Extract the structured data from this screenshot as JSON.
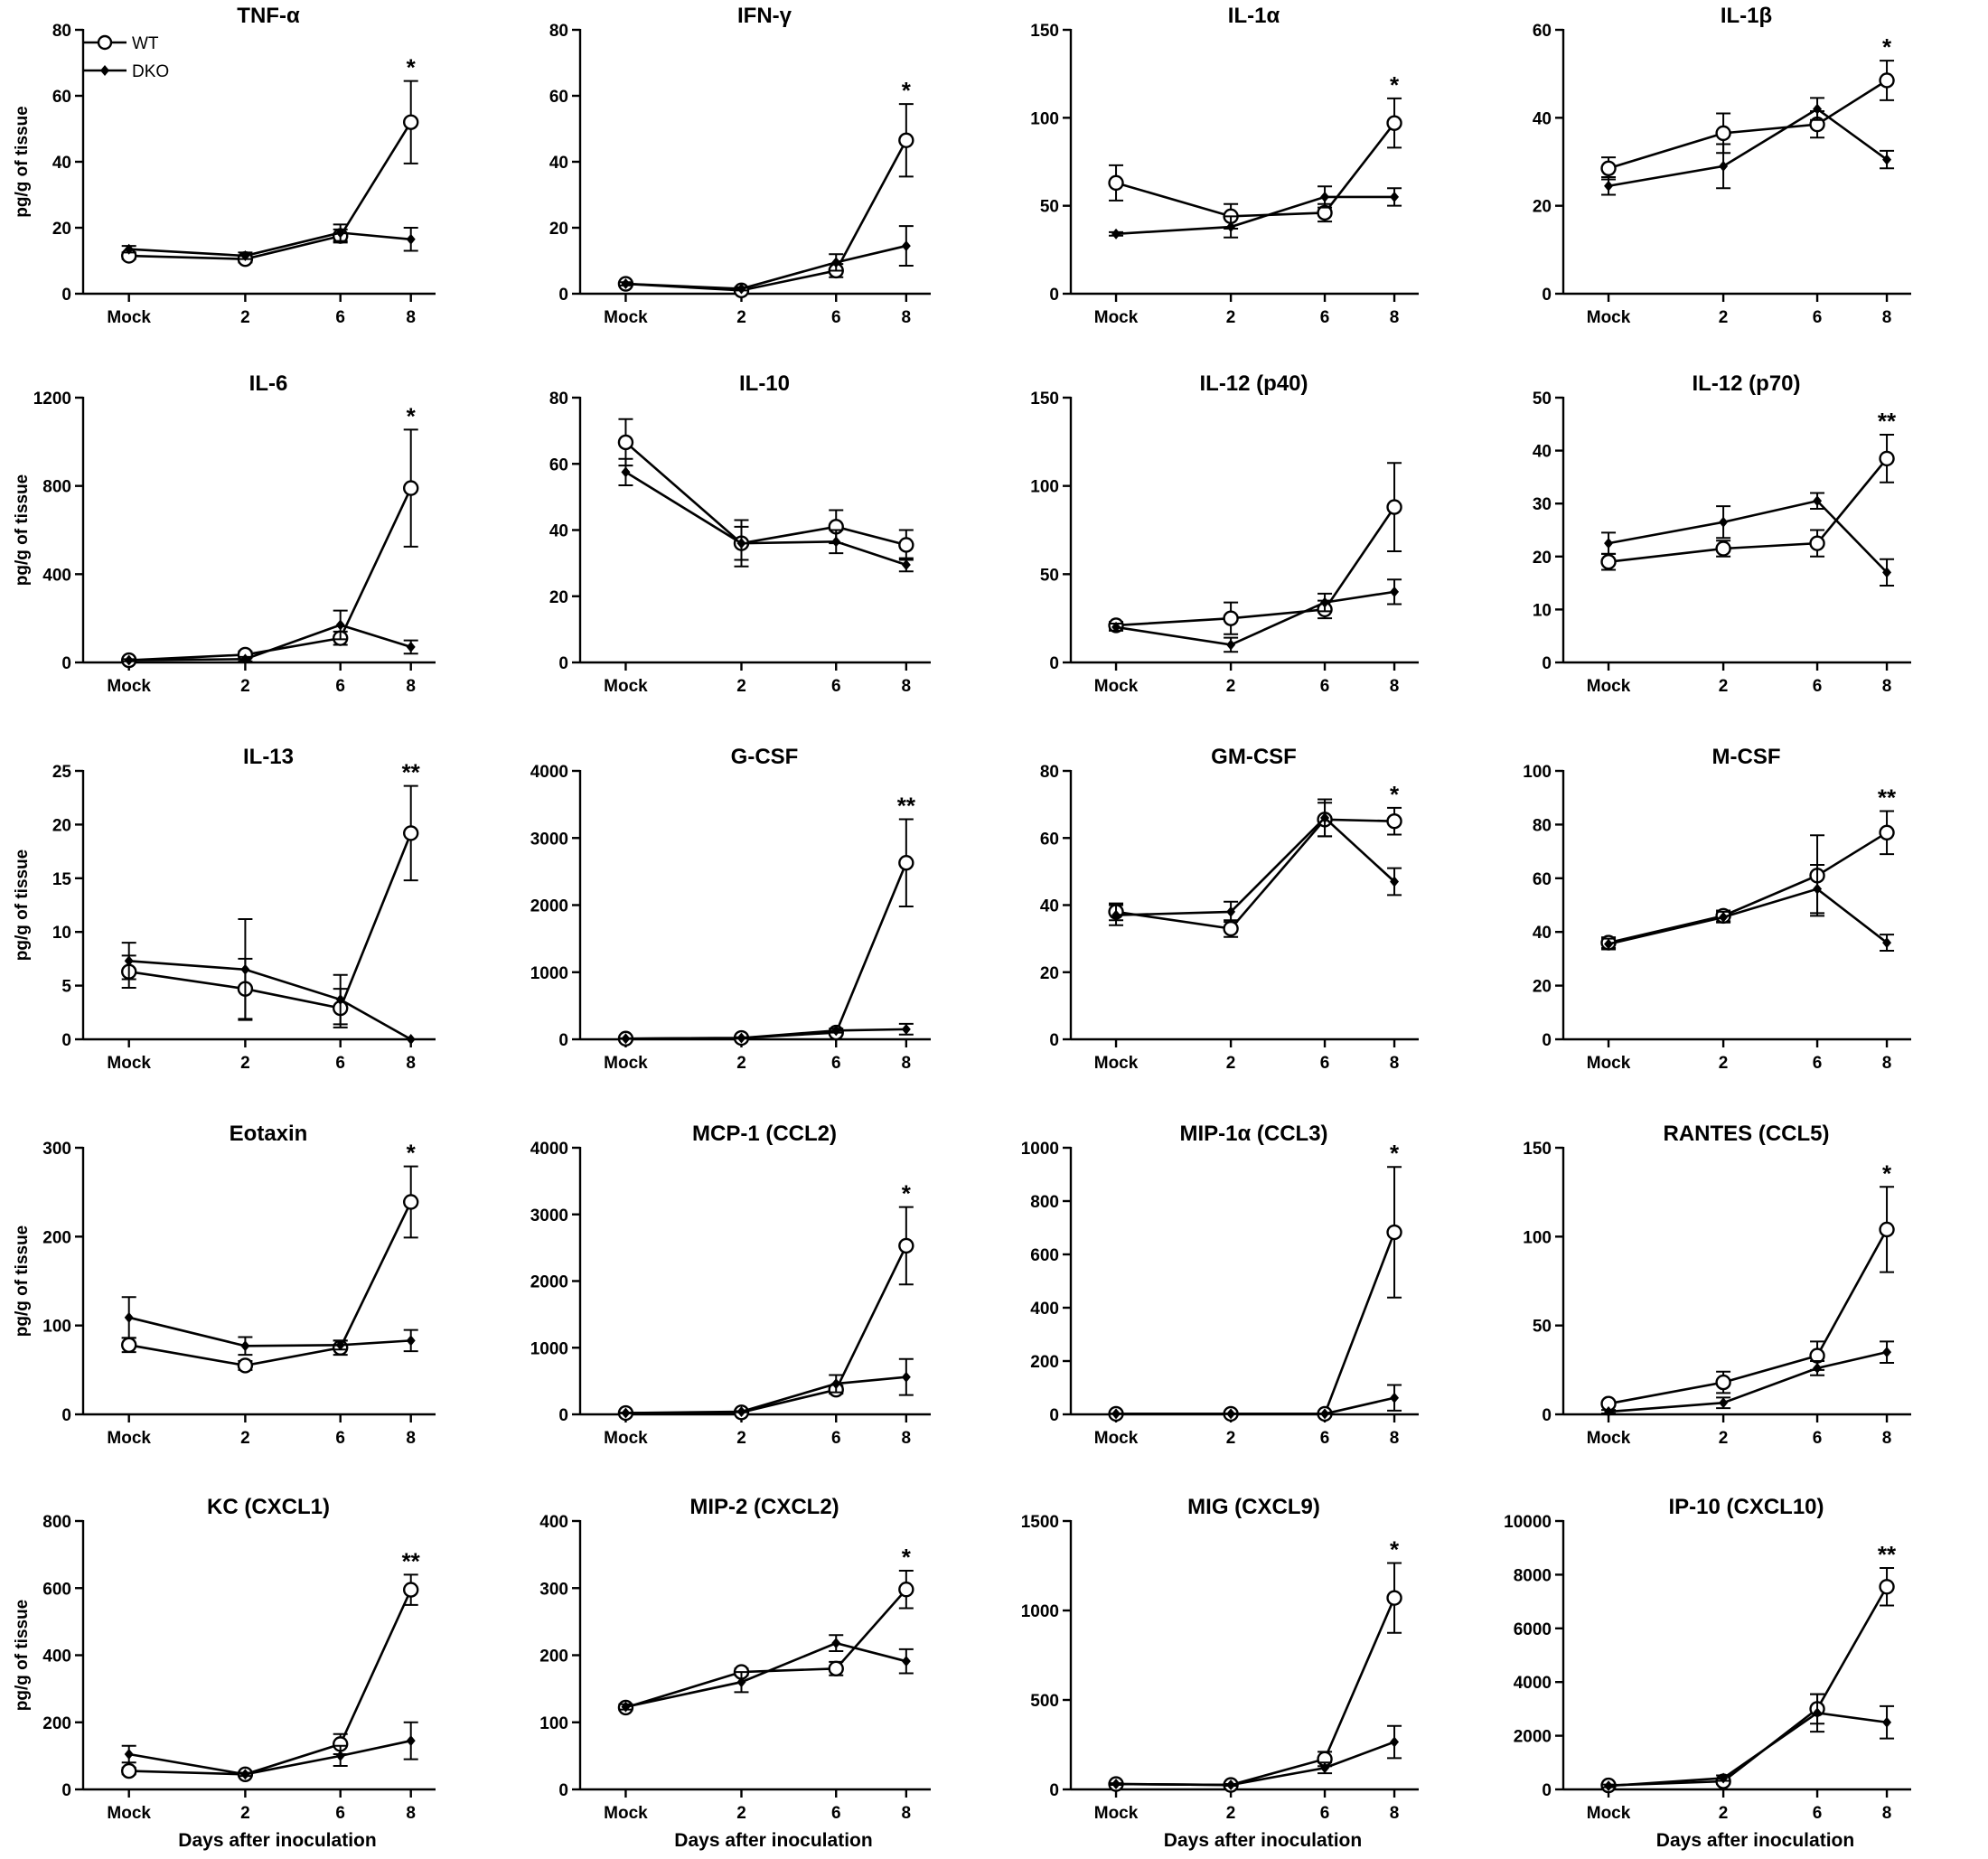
{
  "figure": {
    "legend": {
      "wt_label": "WT",
      "dko_label": "DKO",
      "placement": "top-left"
    },
    "ylabel": "pg/g of tissue",
    "xlabel": "Days after inoculation",
    "x_categories": [
      "Mock",
      "2",
      "6",
      "8"
    ]
  },
  "chart_data": [
    {
      "type": "line",
      "title": "TNF-α",
      "ylim": [
        0,
        80
      ],
      "yticks": [
        0,
        20,
        40,
        60,
        80
      ],
      "categories": [
        "Mock",
        "2",
        "6",
        "8"
      ],
      "series": [
        {
          "name": "WT",
          "values": [
            11.5,
            10.5,
            17.5,
            52
          ],
          "errors": [
            1,
            1,
            2,
            12.5
          ]
        },
        {
          "name": "DKO",
          "values": [
            13.5,
            11.5,
            18.5,
            16.5
          ],
          "errors": [
            1,
            1,
            2.5,
            3.5
          ]
        }
      ],
      "significance": [
        {
          "category": "8",
          "text": "*"
        }
      ],
      "ylabel": "pg/g of tissue",
      "xlabel": ""
    },
    {
      "type": "line",
      "title": "IFN-γ",
      "ylim": [
        0,
        80
      ],
      "yticks": [
        0,
        20,
        40,
        60,
        80
      ],
      "categories": [
        "Mock",
        "2",
        "6",
        "8"
      ],
      "series": [
        {
          "name": "WT",
          "values": [
            3,
            1,
            7,
            46.5
          ],
          "errors": [
            0.5,
            0.5,
            2,
            11
          ]
        },
        {
          "name": "DKO",
          "values": [
            3,
            1.5,
            9.5,
            14.5
          ],
          "errors": [
            0.5,
            0.5,
            2.5,
            6
          ]
        }
      ],
      "significance": [
        {
          "category": "8",
          "text": "*"
        }
      ],
      "ylabel": "",
      "xlabel": ""
    },
    {
      "type": "line",
      "title": "IL-1α",
      "ylim": [
        0,
        150
      ],
      "yticks": [
        0,
        50,
        100,
        150
      ],
      "categories": [
        "Mock",
        "2",
        "6",
        "8"
      ],
      "series": [
        {
          "name": "WT",
          "values": [
            63,
            44,
            46,
            97
          ],
          "errors": [
            10,
            7,
            5,
            14
          ]
        },
        {
          "name": "DKO",
          "values": [
            34,
            38,
            55,
            55
          ],
          "errors": [
            1,
            6,
            6,
            5
          ]
        }
      ],
      "significance": [
        {
          "category": "8",
          "text": "*"
        }
      ],
      "ylabel": "",
      "xlabel": ""
    },
    {
      "type": "line",
      "title": "IL-1β",
      "ylim": [
        0,
        60
      ],
      "yticks": [
        0,
        20,
        40,
        60
      ],
      "categories": [
        "Mock",
        "2",
        "6",
        "8"
      ],
      "series": [
        {
          "name": "WT",
          "values": [
            28.5,
            36.5,
            38.5,
            48.5
          ],
          "errors": [
            2.5,
            4.5,
            3,
            4.5
          ]
        },
        {
          "name": "DKO",
          "values": [
            24.5,
            29,
            42,
            30.5
          ],
          "errors": [
            2,
            5,
            2.5,
            2
          ]
        }
      ],
      "significance": [
        {
          "category": "8",
          "text": "*"
        }
      ],
      "ylabel": "",
      "xlabel": ""
    },
    {
      "type": "line",
      "title": "IL-6",
      "ylim": [
        0,
        1200
      ],
      "yticks": [
        0,
        400,
        800,
        1200
      ],
      "categories": [
        "Mock",
        "2",
        "6",
        "8"
      ],
      "series": [
        {
          "name": "WT",
          "values": [
            10,
            35,
            110,
            790
          ],
          "errors": [
            5,
            15,
            30,
            265
          ]
        },
        {
          "name": "DKO",
          "values": [
            10,
            15,
            170,
            70
          ],
          "errors": [
            5,
            10,
            65,
            30
          ]
        }
      ],
      "significance": [
        {
          "category": "8",
          "text": "*"
        }
      ],
      "ylabel": "pg/g of tissue",
      "xlabel": ""
    },
    {
      "type": "line",
      "title": "IL-10",
      "ylim": [
        0,
        80
      ],
      "yticks": [
        0,
        20,
        40,
        60,
        80
      ],
      "categories": [
        "Mock",
        "2",
        "6",
        "8"
      ],
      "series": [
        {
          "name": "WT",
          "values": [
            66.5,
            36,
            41,
            35.5
          ],
          "errors": [
            7,
            7,
            5,
            4.5
          ]
        },
        {
          "name": "DKO",
          "values": [
            57.5,
            36,
            36.5,
            29.5
          ],
          "errors": [
            4,
            5,
            3.5,
            2
          ]
        }
      ],
      "significance": [],
      "ylabel": "",
      "xlabel": ""
    },
    {
      "type": "line",
      "title": "IL-12 (p40)",
      "ylim": [
        0,
        150
      ],
      "yticks": [
        0,
        50,
        100,
        150
      ],
      "categories": [
        "Mock",
        "2",
        "6",
        "8"
      ],
      "series": [
        {
          "name": "WT",
          "values": [
            21,
            25,
            30,
            88
          ],
          "errors": [
            2,
            9,
            5,
            25
          ]
        },
        {
          "name": "DKO",
          "values": [
            20,
            10,
            34,
            40
          ],
          "errors": [
            2,
            4,
            5,
            7
          ]
        }
      ],
      "significance": [],
      "ylabel": "",
      "xlabel": ""
    },
    {
      "type": "line",
      "title": "IL-12 (p70)",
      "ylim": [
        0,
        50
      ],
      "yticks": [
        0,
        10,
        20,
        30,
        40,
        50
      ],
      "categories": [
        "Mock",
        "2",
        "6",
        "8"
      ],
      "series": [
        {
          "name": "WT",
          "values": [
            19,
            21.5,
            22.5,
            38.5
          ],
          "errors": [
            1.5,
            1.5,
            2.5,
            4.5
          ]
        },
        {
          "name": "DKO",
          "values": [
            22.5,
            26.5,
            30.5,
            17
          ],
          "errors": [
            2,
            3,
            1.5,
            2.5
          ]
        }
      ],
      "significance": [
        {
          "category": "8",
          "text": "**"
        }
      ],
      "ylabel": "",
      "xlabel": ""
    },
    {
      "type": "line",
      "title": "IL-13",
      "ylim": [
        0,
        25
      ],
      "yticks": [
        0,
        5,
        10,
        15,
        20,
        25
      ],
      "categories": [
        "Mock",
        "2",
        "6",
        "8"
      ],
      "series": [
        {
          "name": "WT",
          "values": [
            6.3,
            4.7,
            2.9,
            19.2
          ],
          "errors": [
            1.5,
            2.8,
            1.8,
            4.4
          ]
        },
        {
          "name": "DKO",
          "values": [
            7.3,
            6.5,
            3.7,
            0
          ],
          "errors": [
            1.7,
            4.7,
            2.3,
            0
          ]
        }
      ],
      "significance": [
        {
          "category": "8",
          "text": "**"
        }
      ],
      "ylabel": "pg/g of tissue",
      "xlabel": ""
    },
    {
      "type": "line",
      "title": "G-CSF",
      "ylim": [
        0,
        4000
      ],
      "yticks": [
        0,
        1000,
        2000,
        3000,
        4000
      ],
      "categories": [
        "Mock",
        "2",
        "6",
        "8"
      ],
      "series": [
        {
          "name": "WT",
          "values": [
            10,
            20,
            100,
            2630
          ],
          "errors": [
            5,
            10,
            30,
            650
          ]
        },
        {
          "name": "DKO",
          "values": [
            10,
            20,
            130,
            150
          ],
          "errors": [
            5,
            10,
            30,
            80
          ]
        }
      ],
      "significance": [
        {
          "category": "8",
          "text": "**"
        }
      ],
      "ylabel": "",
      "xlabel": ""
    },
    {
      "type": "line",
      "title": "GM-CSF",
      "ylim": [
        0,
        80
      ],
      "yticks": [
        0,
        20,
        40,
        60,
        80
      ],
      "categories": [
        "Mock",
        "2",
        "6",
        "8"
      ],
      "series": [
        {
          "name": "WT",
          "values": [
            38,
            33,
            65.5,
            65
          ],
          "errors": [
            2.5,
            2.5,
            5,
            4
          ]
        },
        {
          "name": "DKO",
          "values": [
            37,
            38,
            66,
            47
          ],
          "errors": [
            3,
            3,
            5.5,
            4
          ]
        }
      ],
      "significance": [
        {
          "category": "8",
          "text": "*"
        }
      ],
      "ylabel": "",
      "xlabel": ""
    },
    {
      "type": "line",
      "title": "M-CSF",
      "ylim": [
        0,
        100
      ],
      "yticks": [
        0,
        20,
        40,
        60,
        80,
        100
      ],
      "categories": [
        "Mock",
        "2",
        "6",
        "8"
      ],
      "series": [
        {
          "name": "WT",
          "values": [
            36,
            46,
            61,
            77
          ],
          "errors": [
            2,
            2,
            15,
            8
          ]
        },
        {
          "name": "DKO",
          "values": [
            35.5,
            45.5,
            56,
            36
          ],
          "errors": [
            2,
            2,
            9,
            3
          ]
        }
      ],
      "significance": [
        {
          "category": "8",
          "text": "**"
        }
      ],
      "ylabel": "",
      "xlabel": ""
    },
    {
      "type": "line",
      "title": "Eotaxin",
      "ylim": [
        0,
        300
      ],
      "yticks": [
        0,
        100,
        200,
        300
      ],
      "categories": [
        "Mock",
        "2",
        "6",
        "8"
      ],
      "series": [
        {
          "name": "WT",
          "values": [
            78,
            55,
            75,
            239
          ],
          "errors": [
            8,
            5,
            8,
            40
          ]
        },
        {
          "name": "DKO",
          "values": [
            109,
            77,
            78,
            83
          ],
          "errors": [
            23,
            10,
            5,
            12
          ]
        }
      ],
      "significance": [
        {
          "category": "8",
          "text": "*"
        }
      ],
      "ylabel": "pg/g of tissue",
      "xlabel": ""
    },
    {
      "type": "line",
      "title": "MCP-1 (CCL2)",
      "ylim": [
        0,
        4000
      ],
      "yticks": [
        0,
        1000,
        2000,
        3000,
        4000
      ],
      "categories": [
        "Mock",
        "2",
        "6",
        "8"
      ],
      "series": [
        {
          "name": "WT",
          "values": [
            20,
            30,
            370,
            2530
          ],
          "errors": [
            5,
            10,
            60,
            580
          ]
        },
        {
          "name": "DKO",
          "values": [
            20,
            40,
            460,
            560
          ],
          "errors": [
            5,
            10,
            130,
            270
          ]
        }
      ],
      "significance": [
        {
          "category": "8",
          "text": "*"
        }
      ],
      "ylabel": "",
      "xlabel": ""
    },
    {
      "type": "line",
      "title": "MIP-1α (CCL3)",
      "ylim": [
        0,
        1000
      ],
      "yticks": [
        0,
        200,
        400,
        600,
        800,
        1000
      ],
      "categories": [
        "Mock",
        "2",
        "6",
        "8"
      ],
      "series": [
        {
          "name": "WT",
          "values": [
            2,
            2,
            2,
            683
          ],
          "errors": [
            1,
            1,
            1,
            245
          ]
        },
        {
          "name": "DKO",
          "values": [
            2,
            2,
            2,
            62
          ],
          "errors": [
            1,
            1,
            1,
            48
          ]
        }
      ],
      "significance": [
        {
          "category": "8",
          "text": "*"
        }
      ],
      "ylabel": "",
      "xlabel": ""
    },
    {
      "type": "line",
      "title": "RANTES (CCL5)",
      "ylim": [
        0,
        150
      ],
      "yticks": [
        0,
        50,
        100,
        150
      ],
      "categories": [
        "Mock",
        "2",
        "6",
        "8"
      ],
      "series": [
        {
          "name": "WT",
          "values": [
            6,
            18,
            33,
            104
          ],
          "errors": [
            1,
            6,
            8,
            24
          ]
        },
        {
          "name": "DKO",
          "values": [
            1.5,
            6.5,
            26,
            35
          ],
          "errors": [
            1,
            3,
            4,
            6
          ]
        }
      ],
      "significance": [
        {
          "category": "8",
          "text": "*"
        }
      ],
      "ylabel": "",
      "xlabel": ""
    },
    {
      "type": "line",
      "title": "KC (CXCL1)",
      "ylim": [
        0,
        800
      ],
      "yticks": [
        0,
        200,
        400,
        600,
        800
      ],
      "categories": [
        "Mock",
        "2",
        "6",
        "8"
      ],
      "series": [
        {
          "name": "WT",
          "values": [
            55,
            45,
            135,
            595
          ],
          "errors": [
            10,
            5,
            30,
            45
          ]
        },
        {
          "name": "DKO",
          "values": [
            105,
            45,
            100,
            145
          ],
          "errors": [
            25,
            5,
            30,
            55
          ]
        }
      ],
      "significance": [
        {
          "category": "8",
          "text": "**"
        }
      ],
      "ylabel": "pg/g of tissue",
      "xlabel": "Days after inoculation"
    },
    {
      "type": "line",
      "title": "MIP-2 (CXCL2)",
      "ylim": [
        0,
        400
      ],
      "yticks": [
        0,
        100,
        200,
        300,
        400
      ],
      "categories": [
        "Mock",
        "2",
        "6",
        "8"
      ],
      "series": [
        {
          "name": "WT",
          "values": [
            122,
            175,
            180,
            298
          ],
          "errors": [
            4,
            5,
            10,
            28
          ]
        },
        {
          "name": "DKO",
          "values": [
            123,
            160,
            218,
            191
          ],
          "errors": [
            4,
            15,
            12,
            18
          ]
        }
      ],
      "significance": [
        {
          "category": "8",
          "text": "*"
        }
      ],
      "ylabel": "",
      "xlabel": "Days after inoculation"
    },
    {
      "type": "line",
      "title": "MIG (CXCL9)",
      "ylim": [
        0,
        1500
      ],
      "yticks": [
        0,
        500,
        1000,
        1500
      ],
      "categories": [
        "Mock",
        "2",
        "6",
        "8"
      ],
      "series": [
        {
          "name": "WT",
          "values": [
            30,
            25,
            170,
            1070
          ],
          "errors": [
            5,
            5,
            40,
            195
          ]
        },
        {
          "name": "DKO",
          "values": [
            30,
            25,
            120,
            265
          ],
          "errors": [
            5,
            5,
            30,
            90
          ]
        }
      ],
      "significance": [
        {
          "category": "8",
          "text": "*"
        }
      ],
      "ylabel": "",
      "xlabel": "Days after inoculation"
    },
    {
      "type": "line",
      "title": "IP-10 (CXCL10)",
      "ylim": [
        0,
        10000
      ],
      "yticks": [
        0,
        2000,
        4000,
        6000,
        8000,
        10000
      ],
      "categories": [
        "Mock",
        "2",
        "6",
        "8"
      ],
      "series": [
        {
          "name": "WT",
          "values": [
            150,
            300,
            3000,
            7550
          ],
          "errors": [
            50,
            100,
            550,
            700
          ]
        },
        {
          "name": "DKO",
          "values": [
            130,
            420,
            2850,
            2500
          ],
          "errors": [
            50,
            100,
            700,
            600
          ]
        }
      ],
      "significance": [
        {
          "category": "8",
          "text": "**"
        }
      ],
      "ylabel": "",
      "xlabel": "Days after inoculation"
    }
  ]
}
